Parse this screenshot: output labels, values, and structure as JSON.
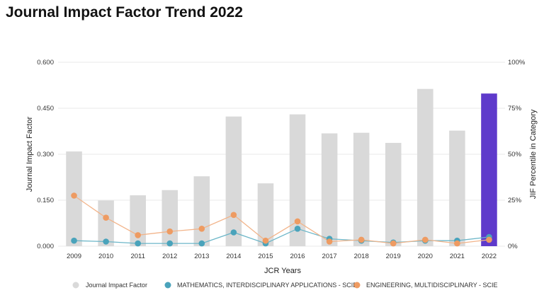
{
  "page": {
    "title": "Journal Impact Factor Trend 2022"
  },
  "colors": {
    "jif_bar": "#d9d9d9",
    "highlight_bar": "#5e3acb",
    "math_line": "#6cb6c8",
    "math_marker": "#4aa3bb",
    "eng_line": "#f2b48a",
    "eng_marker": "#ee9b62",
    "grid": "#e9e9e9"
  },
  "chart_data": {
    "type": "bar",
    "title": "",
    "xlabel": "JCR Years",
    "ylabel": "Journal Impact Factor",
    "y2label": "JIF Percentile in Category",
    "categories": [
      "2009",
      "2010",
      "2011",
      "2012",
      "2013",
      "2014",
      "2015",
      "2016",
      "2017",
      "2018",
      "2019",
      "2020",
      "2021",
      "2022"
    ],
    "ylim": [
      0,
      0.6
    ],
    "y_ticks": [
      "0.000",
      "0.150",
      "0.300",
      "0.450",
      "0.600"
    ],
    "y2lim": [
      0,
      100
    ],
    "y2_ticks": [
      "0%",
      "25%",
      "50%",
      "75%",
      "100%"
    ],
    "grid": true,
    "legend_position": "bottom",
    "highlight_category": "2022",
    "bars": {
      "name": "Journal Impact Factor",
      "values": [
        0.309,
        0.149,
        0.166,
        0.183,
        0.228,
        0.423,
        0.205,
        0.43,
        0.368,
        0.37,
        0.337,
        0.513,
        0.377,
        0.498
      ]
    },
    "series": [
      {
        "name": "MATHEMATICS, INTERDISCIPLINARY APPLICATIONS - SCIE",
        "axis": "right",
        "values": [
          3,
          2.5,
          1.5,
          1.5,
          1.5,
          7.5,
          1.5,
          9.5,
          4,
          3,
          2,
          3,
          3,
          5
        ]
      },
      {
        "name": "ENGINEERING, MULTIDISCIPLINARY - SCIE",
        "axis": "right",
        "values": [
          27.5,
          15.5,
          6,
          8,
          9.5,
          17,
          3,
          13.5,
          2.5,
          3.5,
          1.5,
          3.5,
          1.5,
          3.5
        ]
      }
    ]
  }
}
